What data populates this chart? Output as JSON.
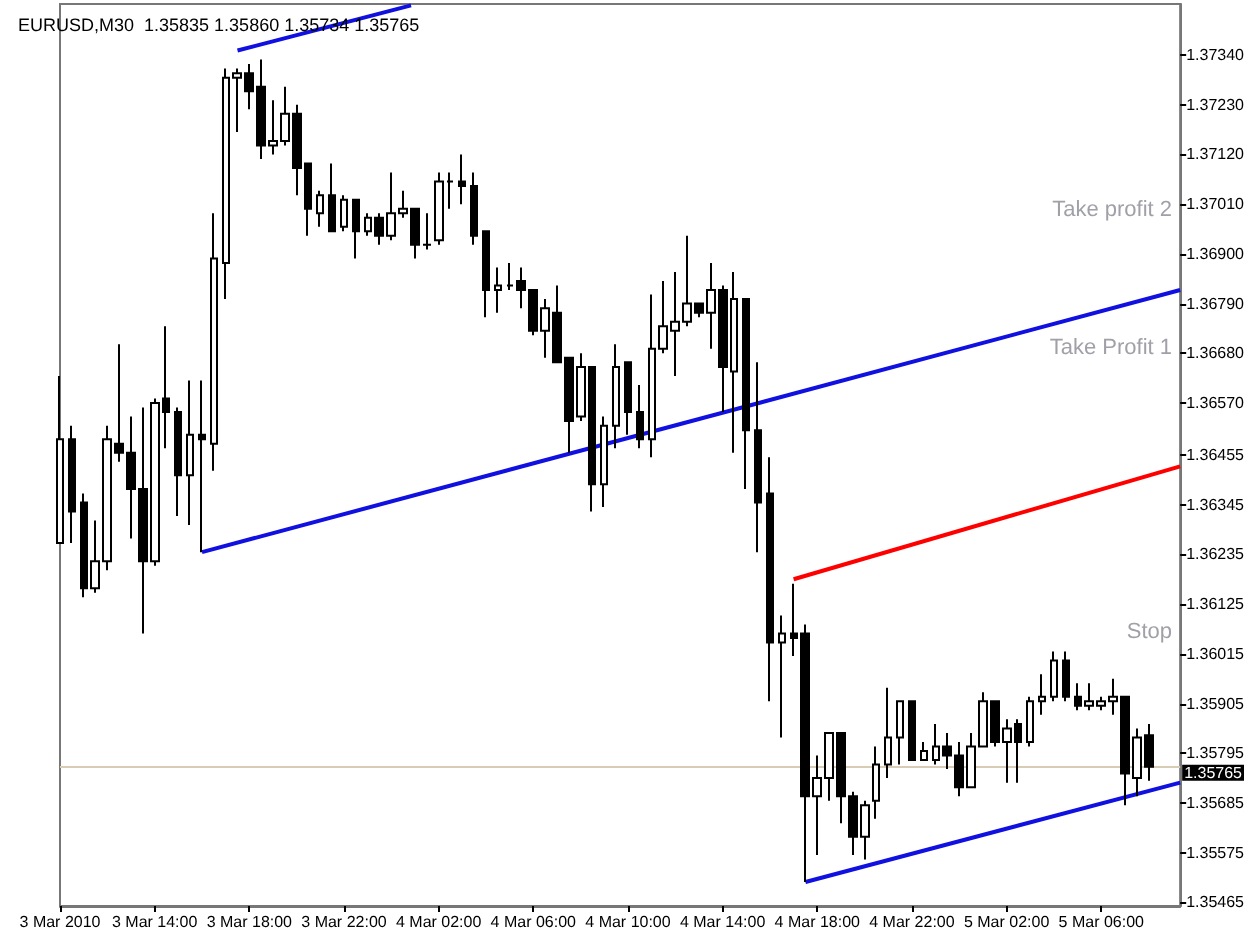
{
  "chart_data": {
    "type": "candlestick",
    "title": "EURUSD,M30  1.35835 1.35860 1.35734 1.35765",
    "x": [
      "2010-03-03T10:00",
      "2010-03-03T10:30",
      "2010-03-03T11:00",
      "2010-03-03T11:30",
      "2010-03-03T12:00",
      "2010-03-03T12:30",
      "2010-03-03T13:00",
      "2010-03-03T13:30",
      "2010-03-03T14:00",
      "2010-03-03T14:30",
      "2010-03-03T15:00",
      "2010-03-03T15:30",
      "2010-03-03T16:00",
      "2010-03-03T16:30",
      "2010-03-03T17:00",
      "2010-03-03T17:30",
      "2010-03-03T18:00",
      "2010-03-03T18:30",
      "2010-03-03T19:00",
      "2010-03-03T19:30",
      "2010-03-03T20:00",
      "2010-03-03T20:30",
      "2010-03-03T21:00",
      "2010-03-03T21:30",
      "2010-03-03T22:00",
      "2010-03-03T22:30",
      "2010-03-03T23:00",
      "2010-03-03T23:30",
      "2010-03-04T00:00",
      "2010-03-04T00:30",
      "2010-03-04T01:00",
      "2010-03-04T01:30",
      "2010-03-04T02:00",
      "2010-03-04T02:30",
      "2010-03-04T03:00",
      "2010-03-04T03:30",
      "2010-03-04T04:00",
      "2010-03-04T04:30",
      "2010-03-04T05:00",
      "2010-03-04T05:30",
      "2010-03-04T06:00",
      "2010-03-04T06:30",
      "2010-03-04T07:00",
      "2010-03-04T07:30",
      "2010-03-04T08:00",
      "2010-03-04T08:30",
      "2010-03-04T09:00",
      "2010-03-04T09:30",
      "2010-03-04T10:00",
      "2010-03-04T10:30",
      "2010-03-04T11:00",
      "2010-03-04T11:30",
      "2010-03-04T12:00",
      "2010-03-04T12:30",
      "2010-03-04T13:00",
      "2010-03-04T13:30",
      "2010-03-04T14:00",
      "2010-03-04T14:30",
      "2010-03-04T15:00",
      "2010-03-04T15:30",
      "2010-03-04T16:00",
      "2010-03-04T16:30",
      "2010-03-04T17:00",
      "2010-03-04T17:30",
      "2010-03-04T18:00",
      "2010-03-04T18:30",
      "2010-03-04T19:00",
      "2010-03-04T19:30",
      "2010-03-04T20:00",
      "2010-03-04T20:30",
      "2010-03-04T21:00",
      "2010-03-04T21:30",
      "2010-03-04T22:00",
      "2010-03-04T22:30",
      "2010-03-04T23:00",
      "2010-03-04T23:30",
      "2010-03-05T00:00",
      "2010-03-05T00:30",
      "2010-03-05T01:00",
      "2010-03-05T01:30",
      "2010-03-05T02:00",
      "2010-03-05T02:30",
      "2010-03-05T03:00",
      "2010-03-05T03:30",
      "2010-03-05T04:00",
      "2010-03-05T04:30",
      "2010-03-05T05:00",
      "2010-03-05T05:30",
      "2010-03-05T06:00",
      "2010-03-05T06:30",
      "2010-03-05T07:00",
      "2010-03-05T07:30",
      "2010-03-05T08:00"
    ],
    "ohlc": [
      [
        1.3626,
        1.3663,
        1.3626,
        1.3649
      ],
      [
        1.3649,
        1.3652,
        1.3626,
        1.3633
      ],
      [
        1.3635,
        1.3637,
        1.3614,
        1.3616
      ],
      [
        1.3616,
        1.3631,
        1.3615,
        1.3622
      ],
      [
        1.3622,
        1.3652,
        1.362,
        1.3649
      ],
      [
        1.3648,
        1.367,
        1.3644,
        1.3646
      ],
      [
        1.3646,
        1.3654,
        1.3627,
        1.3638
      ],
      [
        1.3638,
        1.3656,
        1.3606,
        1.3622
      ],
      [
        1.3622,
        1.3658,
        1.3621,
        1.3657
      ],
      [
        1.3658,
        1.3674,
        1.3647,
        1.3655
      ],
      [
        1.3655,
        1.3656,
        1.3632,
        1.3641
      ],
      [
        1.3641,
        1.3662,
        1.363,
        1.365
      ],
      [
        1.365,
        1.3662,
        1.3624,
        1.3649
      ],
      [
        1.3648,
        1.3699,
        1.3642,
        1.3689
      ],
      [
        1.3688,
        1.3731,
        1.368,
        1.3729
      ],
      [
        1.3729,
        1.3731,
        1.3717,
        1.373
      ],
      [
        1.373,
        1.3732,
        1.3722,
        1.3726
      ],
      [
        1.3727,
        1.3733,
        1.3711,
        1.3714
      ],
      [
        1.3714,
        1.3724,
        1.3712,
        1.3715
      ],
      [
        1.3715,
        1.3727,
        1.3714,
        1.3721
      ],
      [
        1.3721,
        1.3723,
        1.3703,
        1.3709
      ],
      [
        1.371,
        1.371,
        1.3694,
        1.37
      ],
      [
        1.3699,
        1.3704,
        1.3696,
        1.3703
      ],
      [
        1.3703,
        1.371,
        1.3695,
        1.3695
      ],
      [
        1.3696,
        1.3703,
        1.3695,
        1.3702
      ],
      [
        1.3702,
        1.3702,
        1.3689,
        1.3695
      ],
      [
        1.3695,
        1.3699,
        1.3694,
        1.3698
      ],
      [
        1.3698,
        1.3699,
        1.3692,
        1.3694
      ],
      [
        1.3694,
        1.3708,
        1.3693,
        1.3699
      ],
      [
        1.3699,
        1.3704,
        1.3698,
        1.37
      ],
      [
        1.37,
        1.37,
        1.3689,
        1.3692
      ],
      [
        1.3692,
        1.3699,
        1.3691,
        1.3692
      ],
      [
        1.3693,
        1.3708,
        1.3692,
        1.3706
      ],
      [
        1.3706,
        1.3708,
        1.37,
        1.3706
      ],
      [
        1.3706,
        1.3712,
        1.3701,
        1.3705
      ],
      [
        1.3705,
        1.3708,
        1.3692,
        1.3694
      ],
      [
        1.3695,
        1.3695,
        1.3676,
        1.3682
      ],
      [
        1.3682,
        1.3687,
        1.3677,
        1.3683
      ],
      [
        1.3683,
        1.3688,
        1.3682,
        1.3683
      ],
      [
        1.3684,
        1.3687,
        1.3678,
        1.3682
      ],
      [
        1.3682,
        1.3682,
        1.3672,
        1.3673
      ],
      [
        1.3673,
        1.368,
        1.3667,
        1.3678
      ],
      [
        1.3677,
        1.3683,
        1.3666,
        1.3666
      ],
      [
        1.3667,
        1.3667,
        1.3646,
        1.3653
      ],
      [
        1.3654,
        1.3668,
        1.3653,
        1.3665
      ],
      [
        1.3665,
        1.3665,
        1.3633,
        1.3639
      ],
      [
        1.3639,
        1.3654,
        1.3634,
        1.3652
      ],
      [
        1.3652,
        1.367,
        1.3647,
        1.3665
      ],
      [
        1.3666,
        1.3666,
        1.365,
        1.3655
      ],
      [
        1.3655,
        1.3661,
        1.3647,
        1.3649
      ],
      [
        1.3649,
        1.3681,
        1.3645,
        1.3669
      ],
      [
        1.3669,
        1.3684,
        1.3668,
        1.3674
      ],
      [
        1.3673,
        1.3686,
        1.3663,
        1.3675
      ],
      [
        1.3675,
        1.3694,
        1.3674,
        1.3679
      ],
      [
        1.3679,
        1.3679,
        1.3676,
        1.3677
      ],
      [
        1.3677,
        1.3688,
        1.3669,
        1.3682
      ],
      [
        1.3682,
        1.3683,
        1.3655,
        1.3665
      ],
      [
        1.3664,
        1.3686,
        1.3646,
        1.368
      ],
      [
        1.368,
        1.368,
        1.3638,
        1.3651
      ],
      [
        1.3651,
        1.3666,
        1.3624,
        1.3635
      ],
      [
        1.3637,
        1.3645,
        1.3591,
        1.3604
      ],
      [
        1.3604,
        1.361,
        1.3583,
        1.3606
      ],
      [
        1.3606,
        1.3617,
        1.3601,
        1.3605
      ],
      [
        1.3606,
        1.3608,
        1.3551,
        1.357
      ],
      [
        1.357,
        1.3579,
        1.3557,
        1.3574
      ],
      [
        1.3574,
        1.3584,
        1.3569,
        1.3584
      ],
      [
        1.3584,
        1.3584,
        1.3564,
        1.357
      ],
      [
        1.357,
        1.3571,
        1.3557,
        1.3561
      ],
      [
        1.3561,
        1.3569,
        1.3556,
        1.3568
      ],
      [
        1.3569,
        1.3581,
        1.3565,
        1.3577
      ],
      [
        1.3577,
        1.3594,
        1.3574,
        1.3583
      ],
      [
        1.3583,
        1.3591,
        1.3577,
        1.3591
      ],
      [
        1.3591,
        1.3591,
        1.3578,
        1.3578
      ],
      [
        1.3578,
        1.3582,
        1.3578,
        1.358
      ],
      [
        1.3578,
        1.3586,
        1.3577,
        1.3581
      ],
      [
        1.3581,
        1.3584,
        1.3576,
        1.3579
      ],
      [
        1.3579,
        1.3582,
        1.357,
        1.3572
      ],
      [
        1.3572,
        1.3584,
        1.3572,
        1.3581
      ],
      [
        1.3581,
        1.3593,
        1.3581,
        1.3591
      ],
      [
        1.3591,
        1.3591,
        1.3581,
        1.3582
      ],
      [
        1.3582,
        1.3587,
        1.3573,
        1.3585
      ],
      [
        1.3586,
        1.3587,
        1.3573,
        1.3582
      ],
      [
        1.3582,
        1.3592,
        1.3581,
        1.3591
      ],
      [
        1.3591,
        1.3597,
        1.3588,
        1.3592
      ],
      [
        1.3592,
        1.3602,
        1.3591,
        1.36
      ],
      [
        1.36,
        1.3602,
        1.3591,
        1.3592
      ],
      [
        1.3592,
        1.3595,
        1.3589,
        1.359
      ],
      [
        1.359,
        1.3595,
        1.3589,
        1.3591
      ],
      [
        1.359,
        1.3592,
        1.3589,
        1.3591
      ],
      [
        1.3591,
        1.3596,
        1.3588,
        1.3592
      ],
      [
        1.3592,
        1.3592,
        1.3568,
        1.3575
      ],
      [
        1.3574,
        1.3585,
        1.357,
        1.3583
      ],
      [
        1.35835,
        1.3586,
        1.35734,
        1.35765
      ]
    ],
    "series": [
      {
        "type": "line",
        "color": "#1010e0",
        "x": [
          "2010-03-03T17:30",
          "2010-03-04T00:50"
        ],
        "values": [
          1.3735,
          1.3745
        ]
      },
      {
        "type": "line",
        "color": "#1010e0",
        "x": [
          "2010-03-03T16:00",
          "2010-03-05T09:20"
        ],
        "values": [
          1.3624,
          1.3682
        ]
      },
      {
        "type": "line",
        "color": "#ff0000",
        "x": [
          "2010-03-04T17:00",
          "2010-03-05T09:20"
        ],
        "values": [
          1.3618,
          1.3643
        ]
      },
      {
        "type": "line",
        "color": "#1010e0",
        "x": [
          "2010-03-04T17:30",
          "2010-03-05T09:20"
        ],
        "values": [
          1.3551,
          1.3573
        ]
      }
    ],
    "marker": "none",
    "ref_lines": [
      {
        "axis": "y",
        "value": 1.35765,
        "label": "1.35765",
        "color": "#d8ccb4"
      }
    ],
    "annotations": [
      "Take profit 2",
      "Take Profit 1",
      "Stop"
    ],
    "xlim": [
      "2010-03-03T10:00",
      "2010-03-05T09:20"
    ],
    "xticks": [
      {
        "value": "2010-03-03T10:00",
        "label": "3 Mar 2010"
      },
      {
        "value": "2010-03-03T14:00",
        "label": "3 Mar 14:00"
      },
      {
        "value": "2010-03-03T18:00",
        "label": "3 Mar 18:00"
      },
      {
        "value": "2010-03-03T22:00",
        "label": "3 Mar 22:00"
      },
      {
        "value": "2010-03-04T02:00",
        "label": "4 Mar 02:00"
      },
      {
        "value": "2010-03-04T06:00",
        "label": "4 Mar 06:00"
      },
      {
        "value": "2010-03-04T10:00",
        "label": "4 Mar 10:00"
      },
      {
        "value": "2010-03-04T14:00",
        "label": "4 Mar 14:00"
      },
      {
        "value": "2010-03-04T18:00",
        "label": "4 Mar 18:00"
      },
      {
        "value": "2010-03-04T22:00",
        "label": "4 Mar 22:00"
      },
      {
        "value": "2010-03-05T02:00",
        "label": "5 Mar 02:00"
      },
      {
        "value": "2010-03-05T06:00",
        "label": "5 Mar 06:00"
      }
    ],
    "ylim": [
      1.35457,
      1.37453
    ],
    "yticks": [
      {
        "value": 1.3734,
        "label": "1.37340"
      },
      {
        "value": 1.3723,
        "label": "1.37230"
      },
      {
        "value": 1.3712,
        "label": "1.37120"
      },
      {
        "value": 1.3701,
        "label": "1.37010"
      },
      {
        "value": 1.369,
        "label": "1.36900"
      },
      {
        "value": 1.3679,
        "label": "1.36790"
      },
      {
        "value": 1.3668,
        "label": "1.36680"
      },
      {
        "value": 1.3657,
        "label": "1.36570"
      },
      1.36455,
      1.36345,
      1.36235,
      1.36125,
      1.36015,
      1.35905,
      1.35795,
      1.35685,
      1.35575,
      1.35465
    ]
  }
}
